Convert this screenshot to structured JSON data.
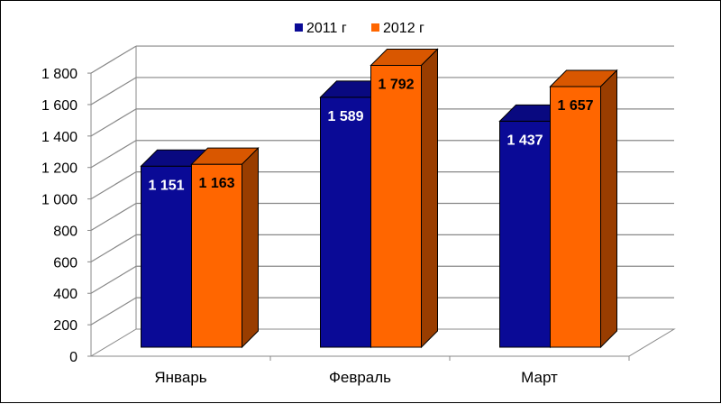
{
  "chart_data": {
    "type": "bar",
    "categories": [
      "Январь",
      "Февраль",
      "Март"
    ],
    "series": [
      {
        "name": "2011 г",
        "values": [
          1151,
          1589,
          1437
        ],
        "labels": [
          "1 151",
          "1 589",
          "1 437"
        ],
        "color": "#0a0a96",
        "label_color": "#ffffff"
      },
      {
        "name": "2012 г",
        "values": [
          1163,
          1792,
          1657
        ],
        "labels": [
          "1 163",
          "1 792",
          "1 657"
        ],
        "color": "#ff6600",
        "label_color": "#000000"
      }
    ],
    "yticks": [
      "0",
      "200",
      "400",
      "600",
      "800",
      "1 000",
      "1 200",
      "1 400",
      "1 600",
      "1 800"
    ],
    "ylim": [
      0,
      1800
    ],
    "grid": true,
    "legend_position": "top",
    "style": "3d-column"
  }
}
